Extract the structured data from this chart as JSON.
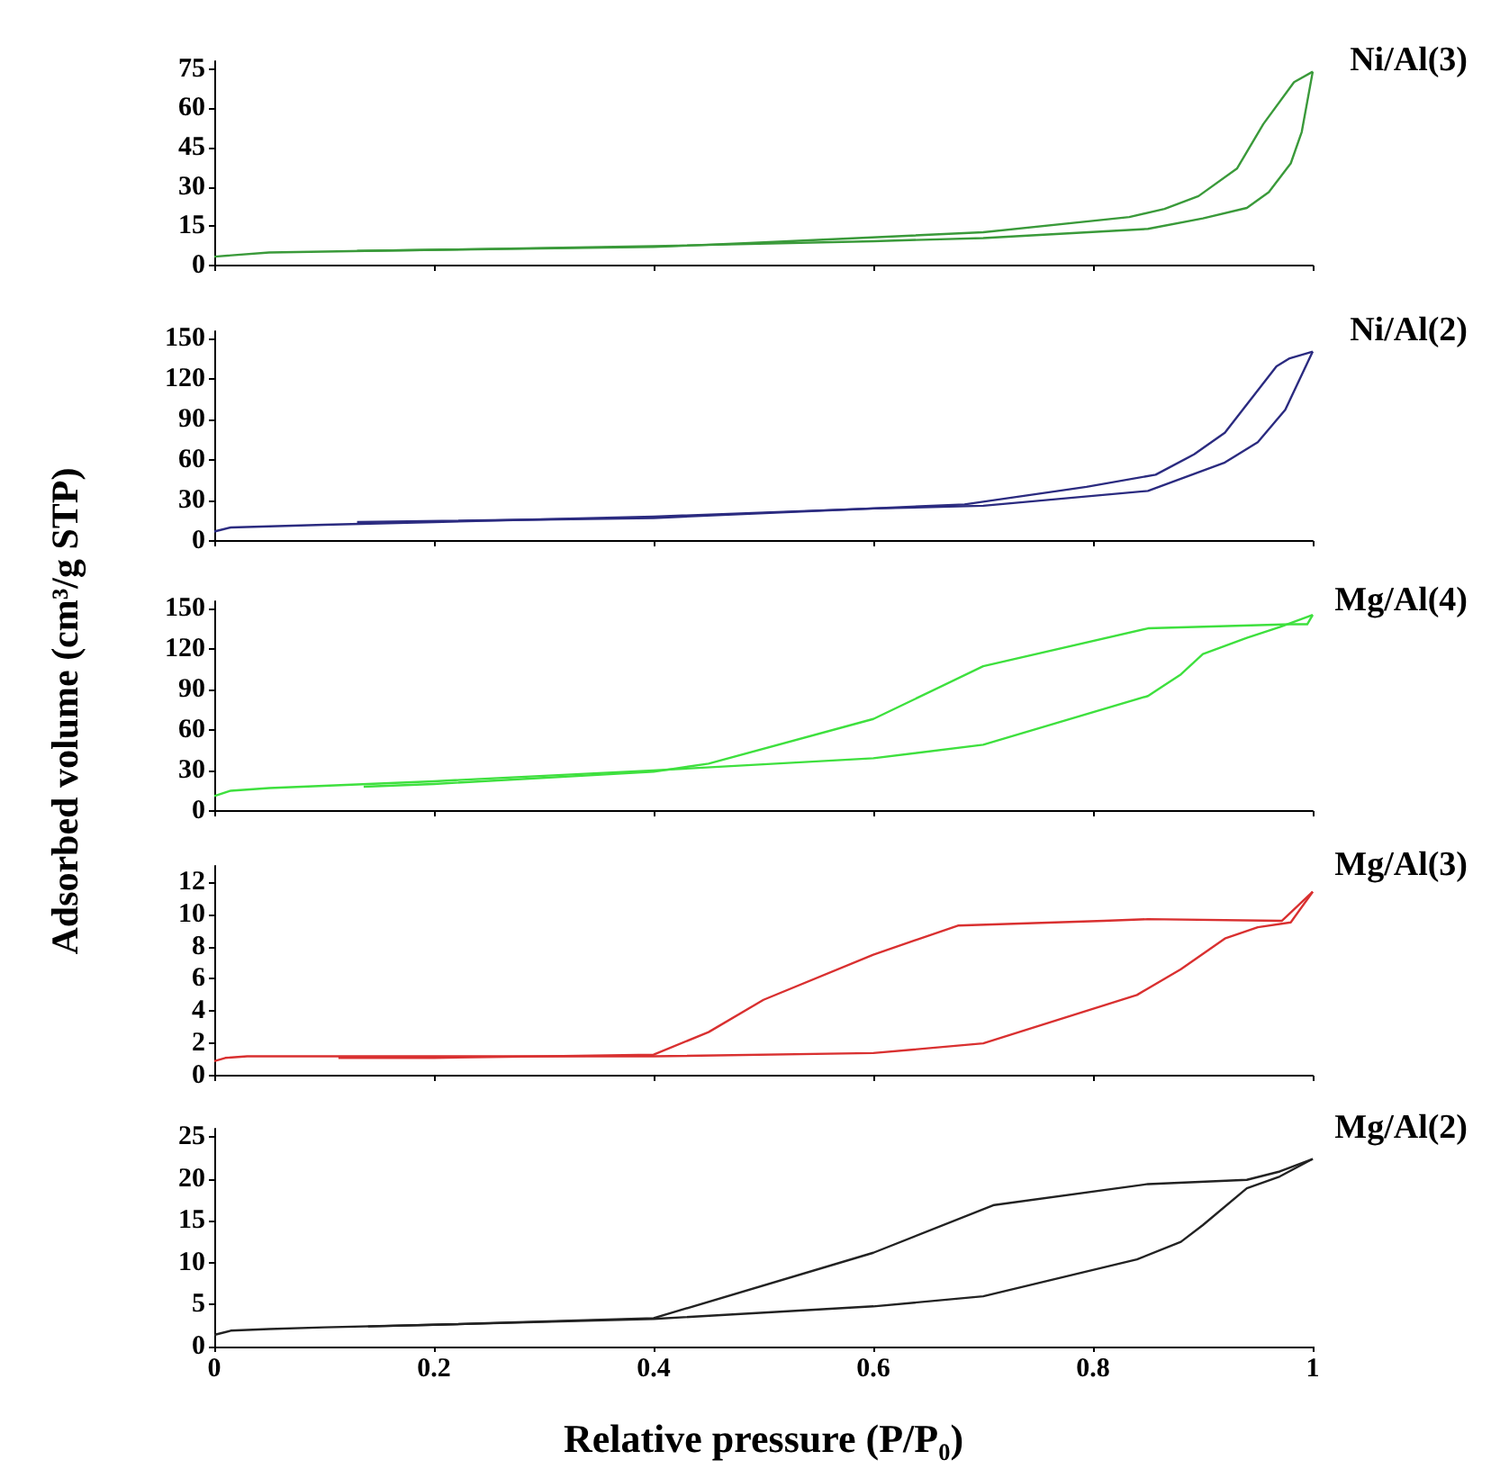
{
  "chart_data": [
    {
      "type": "line",
      "annotations": [
        "Ni/Al(3)"
      ],
      "xlim": [
        0,
        1
      ],
      "xticks": [
        0,
        0.2,
        0.4,
        0.6,
        0.8,
        1
      ],
      "ylim": [
        0,
        78
      ],
      "yticks": [
        0,
        15,
        30,
        45,
        60,
        75
      ],
      "tick_labels": "y",
      "series": [
        {
          "color": "#3a9a3a",
          "x": [
            0,
            0.05,
            0.2,
            0.4,
            0.6,
            0.7,
            0.85,
            0.9,
            0.94,
            0.96,
            0.98,
            0.99,
            1
          ],
          "values": [
            3.4,
            5,
            6,
            7.4,
            9.3,
            10.5,
            14,
            18,
            22,
            28,
            39,
            51,
            74
          ]
        },
        {
          "color": "#3a9a3a",
          "x": [
            1,
            0.983,
            0.955,
            0.931,
            0.896,
            0.865,
            0.833,
            0.7,
            0.487,
            0.4,
            0.13
          ],
          "values": [
            74,
            70,
            54,
            37,
            26.5,
            21.6,
            18.5,
            12.7,
            8.6,
            7.1,
            5.6
          ]
        }
      ]
    },
    {
      "type": "line",
      "annotations": [
        "Ni/Al(2)"
      ],
      "xlim": [
        0,
        1
      ],
      "xticks": [
        0,
        0.2,
        0.4,
        0.6,
        0.8,
        1
      ],
      "ylim": [
        0,
        155
      ],
      "yticks": [
        0,
        30,
        60,
        90,
        120,
        150
      ],
      "tick_labels": "y",
      "series": [
        {
          "color": "#2b2b80",
          "x": [
            0,
            0.015,
            0.1,
            0.2,
            0.4,
            0.6,
            0.7,
            0.85,
            0.89,
            0.92,
            0.95,
            0.975,
            1
          ],
          "values": [
            7,
            10,
            12,
            14,
            18,
            24,
            26,
            37,
            49,
            58,
            73,
            97,
            140
          ]
        },
        {
          "color": "#2b2b80",
          "x": [
            1,
            0.979,
            0.967,
            0.92,
            0.892,
            0.857,
            0.794,
            0.683,
            0.4,
            0.13
          ],
          "values": [
            140,
            135,
            129,
            80,
            64,
            49,
            40,
            27,
            17,
            14
          ]
        }
      ]
    },
    {
      "type": "line",
      "annotations": [
        "Mg/Al(4)"
      ],
      "ylabel": "Adsorbed volume (cm³/g STP)",
      "xlim": [
        0,
        1
      ],
      "xticks": [
        0,
        0.2,
        0.4,
        0.6,
        0.8,
        1
      ],
      "ylim": [
        0,
        155
      ],
      "yticks": [
        0,
        30,
        60,
        90,
        120,
        150
      ],
      "tick_labels": "y",
      "series": [
        {
          "color": "#3ee03e",
          "x": [
            0,
            0.015,
            0.05,
            0.2,
            0.4,
            0.6,
            0.7,
            0.85,
            0.88,
            0.9,
            0.94,
            0.97,
            1
          ],
          "values": [
            11,
            15,
            17,
            22,
            30,
            39,
            49,
            85,
            101,
            116,
            128,
            136,
            145
          ]
        },
        {
          "color": "#3ee03e",
          "x": [
            1,
            0.995,
            0.98,
            0.85,
            0.7,
            0.6,
            0.45,
            0.4,
            0.2,
            0.136
          ],
          "values": [
            145,
            138,
            138,
            135,
            107,
            68,
            35,
            29,
            20,
            18
          ]
        }
      ]
    },
    {
      "type": "line",
      "annotations": [
        "Mg/Al(3)"
      ],
      "xlim": [
        0,
        1
      ],
      "xticks": [
        0,
        0.2,
        0.4,
        0.6,
        0.8,
        1
      ],
      "ylim": [
        0,
        13
      ],
      "yticks": [
        0,
        2,
        4,
        6,
        8,
        10,
        12
      ],
      "tick_labels": "y",
      "series": [
        {
          "color": "#d93030",
          "x": [
            0,
            0.01,
            0.03,
            0.1,
            0.4,
            0.6,
            0.7,
            0.84,
            0.88,
            0.92,
            0.95,
            0.98,
            1
          ],
          "values": [
            0.9,
            1.1,
            1.2,
            1.2,
            1.2,
            1.4,
            2,
            5,
            6.6,
            8.5,
            9.2,
            9.5,
            11.4
          ]
        },
        {
          "color": "#d93030",
          "x": [
            1,
            0.972,
            0.85,
            0.81,
            0.677,
            0.6,
            0.5,
            0.45,
            0.4,
            0.2,
            0.113
          ],
          "values": [
            11.4,
            9.6,
            9.7,
            9.6,
            9.3,
            7.5,
            4.7,
            2.7,
            1.3,
            1.1,
            1.1
          ]
        }
      ]
    },
    {
      "type": "line",
      "annotations": [
        "Mg/Al(2)"
      ],
      "xlabel": "Relative pressure (P/P₀)",
      "xlim": [
        0,
        1
      ],
      "xticks": [
        0,
        0.2,
        0.4,
        0.6,
        0.8,
        1
      ],
      "ylim": [
        0,
        26
      ],
      "yticks": [
        0,
        5,
        10,
        15,
        20,
        25
      ],
      "series": [
        {
          "color": "#222222",
          "x": [
            0,
            0.015,
            0.05,
            0.1,
            0.2,
            0.4,
            0.6,
            0.7,
            0.84,
            0.88,
            0.9,
            0.94,
            0.97,
            1
          ],
          "values": [
            1.4,
            1.9,
            2.1,
            2.3,
            2.6,
            3.3,
            4.8,
            6,
            10.4,
            12.5,
            14.5,
            18.9,
            20.3,
            22.4
          ]
        },
        {
          "color": "#222222",
          "x": [
            1,
            0.97,
            0.94,
            0.85,
            0.71,
            0.6,
            0.4,
            0.2,
            0.14
          ],
          "values": [
            22.4,
            20.9,
            19.9,
            19.4,
            16.9,
            11.2,
            3.4,
            2.6,
            2.4
          ]
        }
      ]
    }
  ]
}
